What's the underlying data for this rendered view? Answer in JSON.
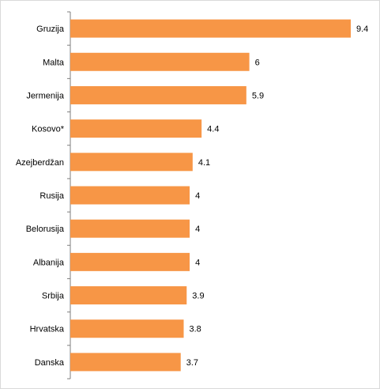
{
  "chart_data": {
    "type": "bar",
    "orientation": "horizontal",
    "categories": [
      "Gruzija",
      "Malta",
      "Jermenija",
      "Kosovo*",
      "Azejberdžan",
      "Rusija",
      "Belorusija",
      "Albanija",
      "Srbija",
      "Hrvatska",
      "Danska"
    ],
    "values": [
      9.4,
      6,
      5.9,
      4.4,
      4.1,
      4,
      4,
      4,
      3.9,
      3.8,
      3.7
    ],
    "value_labels": [
      "9.4",
      "6",
      "5.9",
      "4.4",
      "4.1",
      "4",
      "4",
      "4",
      "3.9",
      "3.8",
      "3.7"
    ],
    "title": "",
    "xlabel": "",
    "ylabel": "",
    "xlim": [
      0,
      10
    ],
    "grid": false,
    "legend": "none",
    "bar_color": "#f79646",
    "axis_color": "#7f7f7f"
  }
}
